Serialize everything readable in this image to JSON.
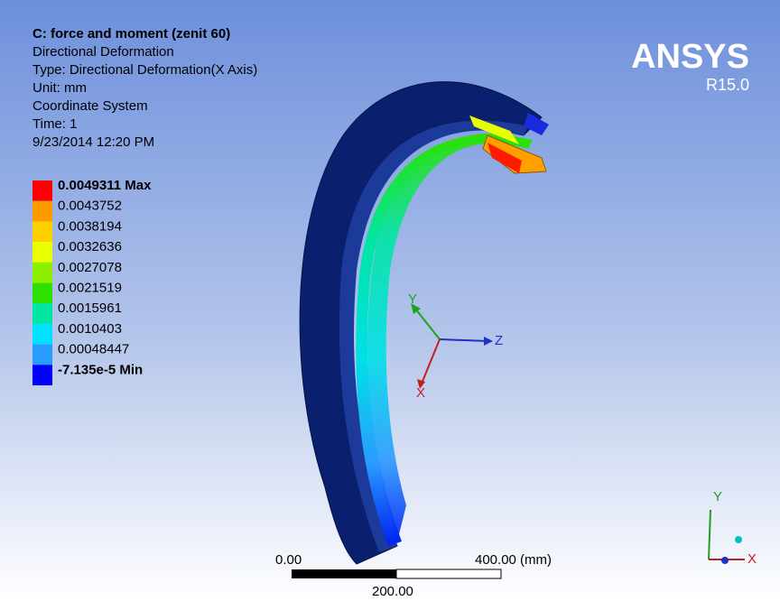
{
  "header": {
    "title": "C: force and moment (zenit 60)",
    "lines": [
      "Directional Deformation",
      "Type: Directional Deformation(X Axis)",
      "Unit: mm",
      "Coordinate System",
      "Time: 1",
      "9/23/2014 12:20 PM"
    ]
  },
  "legend": {
    "entries": [
      {
        "label": "0.0049311 Max",
        "color": "#ff0000"
      },
      {
        "label": "0.0043752",
        "color": "#ff9a00"
      },
      {
        "label": "0.0038194",
        "color": "#ffd000"
      },
      {
        "label": "0.0032636",
        "color": "#eaff00"
      },
      {
        "label": "0.0027078",
        "color": "#8cf000"
      },
      {
        "label": "0.0021519",
        "color": "#2ee000"
      },
      {
        "label": "0.0015961",
        "color": "#00e6a0"
      },
      {
        "label": "0.0010403",
        "color": "#00e0ff"
      },
      {
        "label": "0.00048447",
        "color": "#2a9bff"
      },
      {
        "label": "-7.135e-5 Min",
        "color": "#0000ff"
      }
    ]
  },
  "logo": {
    "name": "ANSYS",
    "version": "R15.0"
  },
  "triad": {
    "y": "Y",
    "z": "Z",
    "x": "X"
  },
  "mini_triad": {
    "y": "Y",
    "x": "X"
  },
  "scale_bar": {
    "start": "0.00",
    "end": "400.00 (mm)",
    "middle": "200.00"
  }
}
